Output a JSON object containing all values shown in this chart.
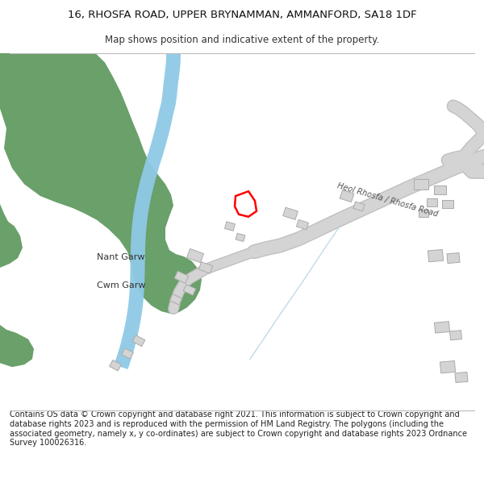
{
  "title_line1": "16, RHOSFA ROAD, UPPER BRYNAMMAN, AMMANFORD, SA18 1DF",
  "title_line2": "Map shows position and indicative extent of the property.",
  "footer_text": "Contains OS data © Crown copyright and database right 2021. This information is subject to Crown copyright and database rights 2023 and is reproduced with the permission of HM Land Registry. The polygons (including the associated geometry, namely x, y co-ordinates) are subject to Crown copyright and database rights 2023 Ordnance Survey 100026316.",
  "background_color": "#ffffff",
  "green_color": "#6aa06a",
  "river_color": "#8ecae6",
  "road_color": "#d4d4d4",
  "road_edge_color": "#c0c0c0",
  "building_color": "#d4d4d4",
  "building_edge": "#aaaaaa",
  "plot_color": "#ff0000",
  "light_line_color": "#b8d8e8",
  "text_color": "#333333",
  "label_nant": "Nant Garw",
  "label_cwm": "Cwm Garw",
  "label_road": "Heol Rhosfa / Rhosfa Road",
  "title_fontsize": 9.5,
  "subtitle_fontsize": 8.5,
  "footer_fontsize": 7.0
}
